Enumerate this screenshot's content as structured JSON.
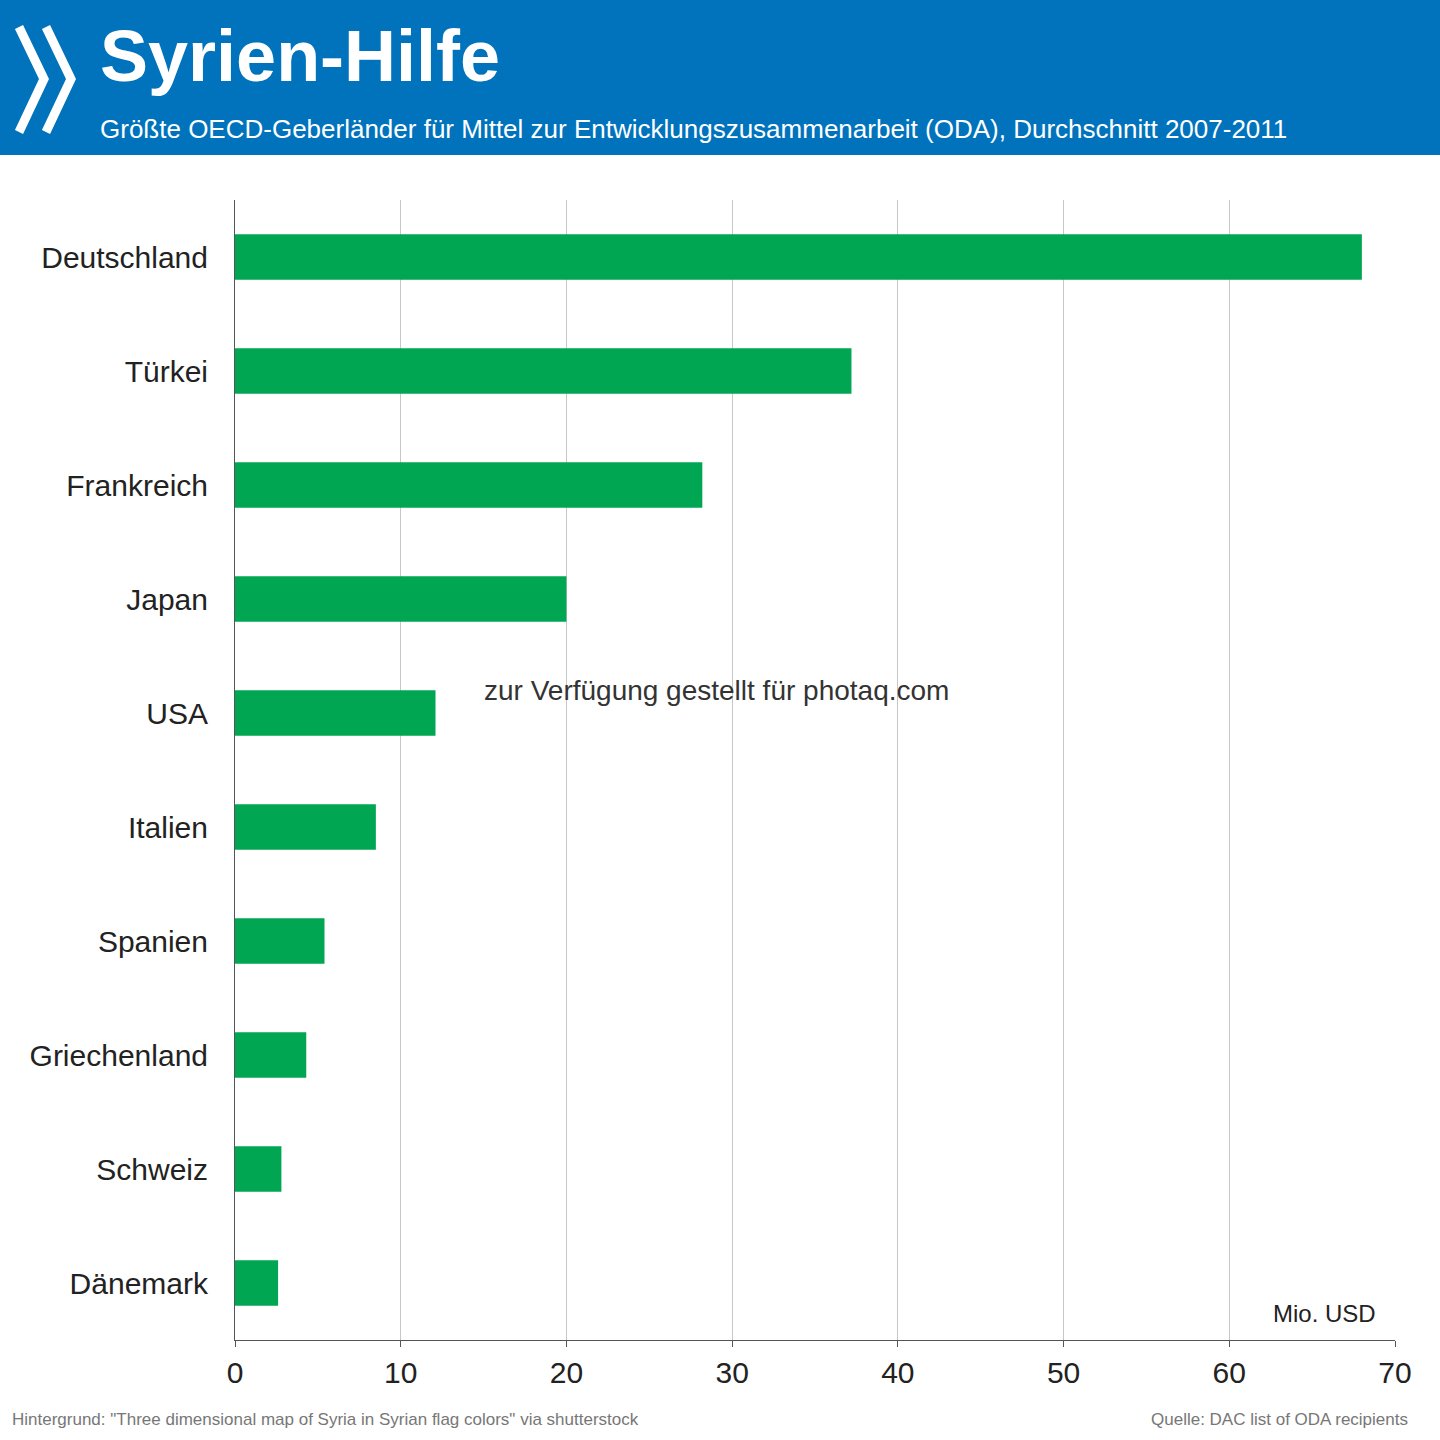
{
  "chart_data": {
    "type": "bar",
    "orientation": "horizontal",
    "title": "Syrien-Hilfe",
    "subtitle": "Größte OECD-Geberländer für Mittel zur Entwicklungszusammenarbeit (ODA), Durchschnitt 2007-2011",
    "categories": [
      "Deutschland",
      "Türkei",
      "Frankreich",
      "Japan",
      "USA",
      "Italien",
      "Spanien",
      "Griechenland",
      "Schweiz",
      "Dänemark"
    ],
    "values": [
      68,
      37.2,
      28.2,
      20,
      12.1,
      8.5,
      5.4,
      4.3,
      2.8,
      2.6
    ],
    "color": "#00a651",
    "xlim": [
      0,
      70
    ],
    "xticks": [
      0,
      10,
      20,
      30,
      40,
      50,
      60,
      70
    ],
    "grid": true,
    "annotations": {
      "unit": "Mio. USD",
      "watermark": "zur Verfügung gestellt für photaq.com",
      "note": "Hintergrund: \"Three dimensional map of Syria in Syrian flag colors\" via shutterstock",
      "source": "Quelle: DAC list of ODA recipients"
    }
  }
}
